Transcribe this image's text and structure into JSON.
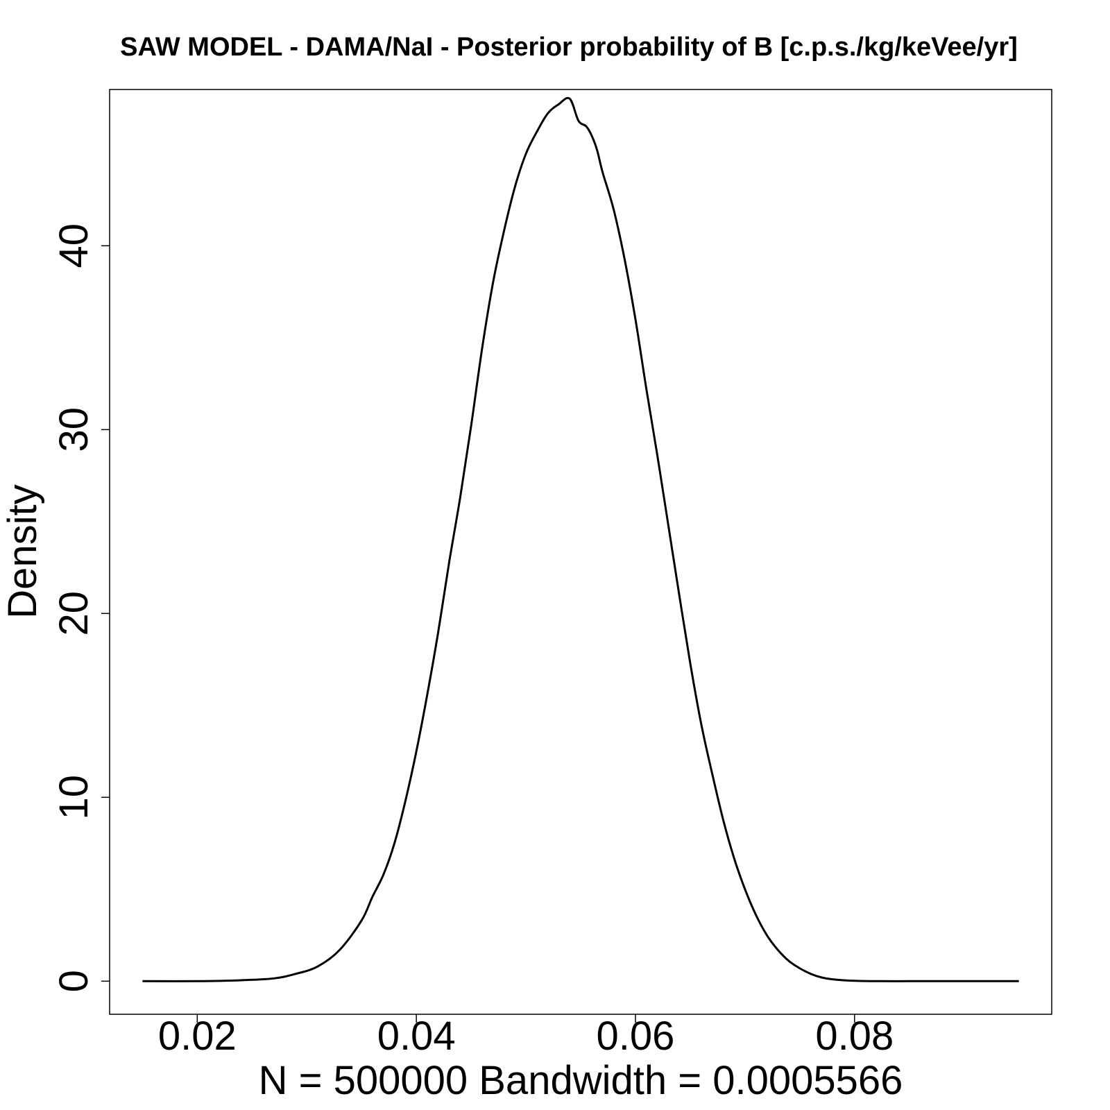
{
  "chart_data": {
    "type": "line",
    "title": "SAW MODEL - DAMA/NaI - Posterior probability of B [c.p.s./kg/keVee/yr]",
    "xlabel": "N = 500000   Bandwidth = 0.0005566",
    "ylabel": "Density",
    "xlim": [
      0.012,
      0.098
    ],
    "ylim": [
      -1.8,
      48.5
    ],
    "x_ticks": [
      0.02,
      0.04,
      0.06,
      0.08
    ],
    "x_tick_labels": [
      "0.02",
      "0.04",
      "0.06",
      "0.08"
    ],
    "y_ticks": [
      0,
      10,
      20,
      30,
      40
    ],
    "y_tick_labels": [
      "0",
      "10",
      "20",
      "30",
      "40"
    ],
    "grid": false,
    "line_color": "#000000",
    "series": [
      {
        "x": [
          0.015,
          0.02,
          0.024,
          0.027,
          0.029,
          0.031,
          0.033,
          0.035,
          0.036,
          0.037,
          0.038,
          0.039,
          0.04,
          0.041,
          0.042,
          0.043,
          0.044,
          0.045,
          0.046,
          0.047,
          0.048,
          0.049,
          0.05,
          0.051,
          0.052,
          0.053,
          0.054,
          0.0548,
          0.0555,
          0.056,
          0.0565,
          0.057,
          0.058,
          0.059,
          0.06,
          0.061,
          0.062,
          0.063,
          0.064,
          0.065,
          0.066,
          0.067,
          0.068,
          0.069,
          0.07,
          0.071,
          0.072,
          0.073,
          0.074,
          0.075,
          0.076,
          0.077,
          0.078,
          0.079,
          0.08,
          0.082,
          0.085,
          0.088,
          0.092,
          0.095
        ],
        "y": [
          0.0,
          0.0,
          0.05,
          0.15,
          0.4,
          0.8,
          1.7,
          3.3,
          4.6,
          5.8,
          7.5,
          9.8,
          12.5,
          15.6,
          19.0,
          22.8,
          26.3,
          30.2,
          34.4,
          38.0,
          40.8,
          43.2,
          45.0,
          46.2,
          47.2,
          47.7,
          48.0,
          46.8,
          46.5,
          46.0,
          45.2,
          44.0,
          42.0,
          39.3,
          36.0,
          32.2,
          28.6,
          24.8,
          21.0,
          17.3,
          14.0,
          11.3,
          8.8,
          6.7,
          5.0,
          3.6,
          2.5,
          1.7,
          1.1,
          0.7,
          0.4,
          0.2,
          0.1,
          0.05,
          0.02,
          0.0,
          0.0,
          0.0,
          0.0,
          0.0
        ]
      }
    ]
  }
}
